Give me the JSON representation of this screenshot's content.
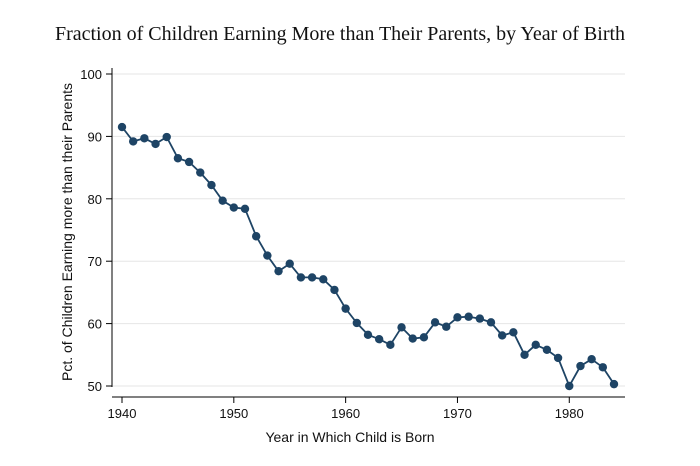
{
  "chart_data": {
    "type": "line",
    "title": "Fraction of Children Earning More than Their Parents, by Year of Birth",
    "xlabel": "Year in Which Child is Born",
    "ylabel": "Pct. of Children Earning more than their Parents",
    "xlim": [
      1940,
      1984
    ],
    "ylim": [
      50,
      100
    ],
    "x_ticks": [
      1940,
      1950,
      1960,
      1970,
      1980
    ],
    "y_ticks": [
      50,
      60,
      70,
      80,
      90,
      100
    ],
    "grid": true,
    "markers": true,
    "line_color": "#1e4465",
    "marker_color": "#1e4465",
    "grid_color": "#e6e6e6",
    "series": [
      {
        "x": [
          1940,
          1941,
          1942,
          1943,
          1944,
          1945,
          1946,
          1947,
          1948,
          1949,
          1950,
          1951,
          1952,
          1953,
          1954,
          1955,
          1956,
          1957,
          1958,
          1959,
          1960,
          1961,
          1962,
          1963,
          1964,
          1965,
          1966,
          1967,
          1968,
          1969,
          1970,
          1971,
          1972,
          1973,
          1974,
          1975,
          1976,
          1977,
          1978,
          1979,
          1980,
          1981,
          1982,
          1983,
          1984
        ],
        "values": [
          91.5,
          89.2,
          89.7,
          88.8,
          89.9,
          86.5,
          85.9,
          84.2,
          82.2,
          79.7,
          78.6,
          78.4,
          74.0,
          70.9,
          68.4,
          69.6,
          67.4,
          67.4,
          67.1,
          65.4,
          62.4,
          60.1,
          58.2,
          57.5,
          56.6,
          59.4,
          57.6,
          57.8,
          60.2,
          59.5,
          61.0,
          61.1,
          60.8,
          60.2,
          58.1,
          58.6,
          55.0,
          56.6,
          55.8,
          54.5,
          50.0,
          53.2,
          54.3,
          53.0,
          50.3
        ]
      }
    ]
  }
}
